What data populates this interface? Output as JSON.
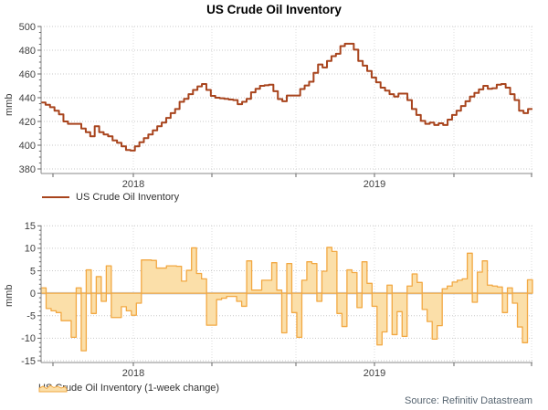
{
  "title": "US Crude Oil Inventory",
  "source": "Source: Refinitiv Datastream",
  "colors": {
    "inventory_line": "#a8441d",
    "change_fill": "#fbdfa9",
    "change_stroke": "#f2a842",
    "zero_band": "#ccd2d9",
    "grid": "#c9c9c9",
    "grid_vertical": "#dcdcdc",
    "axis": "#888888",
    "tick": "#666666",
    "tick_text": "#404040"
  },
  "chart_data": [
    {
      "type": "line",
      "legend": "US Crude Oil Inventory",
      "ylabel": "mmb",
      "ylim": [
        380,
        500
      ],
      "yticks": [
        380,
        400,
        420,
        440,
        460,
        480,
        500
      ],
      "ytick_minor_step": 5,
      "x_year_labels": [
        "2018",
        "2019"
      ],
      "grid": "dotted",
      "values": [
        436,
        434,
        432,
        429,
        426,
        420,
        418,
        418,
        418,
        414,
        411,
        407.5,
        416,
        411,
        409,
        407.5,
        404,
        402,
        399,
        396,
        395.5,
        399,
        402.5,
        406,
        409,
        412.5,
        416,
        419,
        423,
        427,
        430.5,
        436.5,
        439,
        443,
        446.5,
        449.5,
        451.5,
        446.5,
        441.5,
        440,
        439.5,
        439,
        438.5,
        438,
        434.5,
        436.5,
        439,
        444.5,
        447.5,
        450,
        450.5,
        451,
        445.5,
        438.8,
        437,
        441.8,
        441.8,
        441.8,
        447.3,
        450.3,
        453.5,
        461,
        468,
        465.5,
        471,
        475,
        477,
        483.5,
        485.5,
        485.5,
        480.5,
        471,
        467,
        462.5,
        457,
        453,
        448.5,
        446,
        443,
        441,
        443.5,
        443.5,
        438,
        430.5,
        425.5,
        420.5,
        418,
        419,
        417,
        418.5,
        417,
        421.5,
        425.5,
        429,
        433,
        437,
        441,
        444,
        447,
        450,
        447.5,
        448,
        451,
        451.5,
        448.5,
        443,
        438,
        429,
        427,
        430.5
      ]
    },
    {
      "type": "area",
      "legend": "US Crude Oil Inventory (1-week change)",
      "ylabel": "mmb",
      "ylim": [
        -15,
        15
      ],
      "yticks": [
        -15,
        -10,
        -5,
        0,
        5,
        10,
        15
      ],
      "ytick_minor_step": 1,
      "x_year_labels": [
        "2018",
        "2019"
      ],
      "grid": "dotted",
      "values": [
        1.2,
        -3.4,
        -3.9,
        -4.3,
        -6.1,
        -6.1,
        -9.8,
        1.2,
        -12.8,
        5.2,
        -4.5,
        3.7,
        -1.8,
        6.1,
        -5.4,
        -5.4,
        -3.0,
        -3.9,
        -4.9,
        -2.2,
        7.4,
        7.4,
        7.3,
        5.6,
        5.6,
        6.1,
        6.1,
        6.0,
        2.7,
        5.1,
        10.1,
        4.4,
        3.2,
        -7.1,
        -7.1,
        -1.4,
        -1.1,
        -0.7,
        -0.7,
        -1.8,
        -2.9,
        7.2,
        0.7,
        0.7,
        2.9,
        2.9,
        6.8,
        0.7,
        -8.8,
        6.6,
        -4.3,
        -9.8,
        2.9,
        7.0,
        6.6,
        -1.8,
        4.9,
        10.2,
        9.3,
        -4.5,
        -7.4,
        5.2,
        4.6,
        -3.2,
        7.0,
        2.2,
        -2.9,
        -11.5,
        -8.6,
        1.8,
        -9.2,
        -4.1,
        -9.6,
        1.6,
        4.3,
        2.4,
        -3.6,
        -6.3,
        -10.2,
        -7.2,
        1.0,
        1.6,
        2.5,
        2.9,
        3.2,
        8.9,
        -2.0,
        4.7,
        7.2,
        1.8,
        1.6,
        1.4,
        -4.3,
        1.2,
        -2.2,
        -7.5,
        -11.0,
        3.0
      ]
    }
  ]
}
